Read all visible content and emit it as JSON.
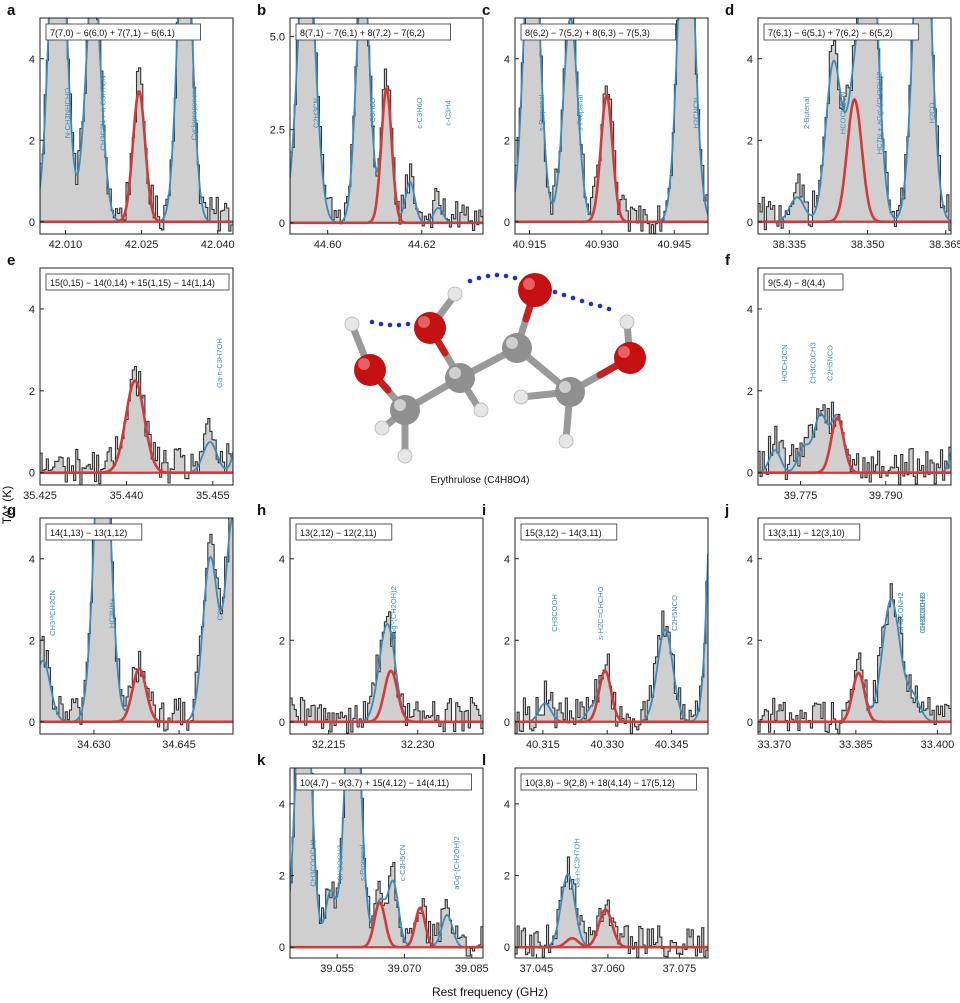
{
  "figure": {
    "y_axis_label": "TA* (K)",
    "x_axis_label": "Rest frequency (GHz)",
    "molecule_caption": "Erythrulose (C4H8O4)"
  },
  "chart_data": [
    {
      "panel": "a",
      "type": "line",
      "transition": "7(7,0) − 6(6,0) + 7(7,1) − 6(6,1)",
      "xlim": [
        42.005,
        42.043
      ],
      "ylim": [
        -0.3,
        5.0
      ],
      "xticks": [
        "42.010",
        "42.025",
        "42.040"
      ],
      "yticks": [
        "0",
        "2",
        "4"
      ],
      "target_lines": [
        {
          "x": 42.0245,
          "height": 3.2,
          "width": 0.0012
        }
      ],
      "other_lines": [
        {
          "x": 42.0085,
          "height": 9.0,
          "width": 0.0016
        },
        {
          "x": 42.0155,
          "height": 6.0,
          "width": 0.0015
        },
        {
          "x": 42.0335,
          "height": 8.0,
          "width": 0.0014
        }
      ],
      "species_labels": [
        "N-CH3NHCHO",
        "CH3C3N + n-C3H7CN",
        "Cyclopropenone"
      ]
    },
    {
      "panel": "b",
      "type": "line",
      "transition": "8(7,1) − 7(6,1) + 8(7,2) − 7(6,2)",
      "xlim": [
        44.592,
        44.633
      ],
      "ylim": [
        -0.3,
        5.5
      ],
      "xticks": [
        "44.60",
        "44.62"
      ],
      "yticks": [
        "0",
        "2.5",
        "5.0"
      ],
      "target_lines": [
        {
          "x": 44.6125,
          "height": 3.6,
          "width": 0.0011
        }
      ],
      "other_lines": [
        {
          "x": 44.5955,
          "height": 8.0,
          "width": 0.0018
        },
        {
          "x": 44.6075,
          "height": 7.0,
          "width": 0.0014
        },
        {
          "x": 44.6175,
          "height": 1.1,
          "width": 0.001
        },
        {
          "x": 44.6235,
          "height": 0.4,
          "width": 0.001
        }
      ],
      "species_labels": [
        "C2H3CN",
        "c-C3H6O",
        "c-C3H6O",
        "c-C3H4"
      ]
    },
    {
      "panel": "c",
      "type": "line",
      "transition": "8(6,2) − 7(5,2) + 8(6,3) − 7(5,3)",
      "xlim": [
        40.912,
        40.952
      ],
      "ylim": [
        -0.3,
        5.0
      ],
      "xticks": [
        "40.915",
        "40.930",
        "40.945"
      ],
      "yticks": [
        "0",
        "2",
        "4"
      ],
      "target_lines": [
        {
          "x": 40.931,
          "height": 3.1,
          "width": 0.0012
        }
      ],
      "other_lines": [
        {
          "x": 40.9155,
          "height": 8.0,
          "width": 0.0016
        },
        {
          "x": 40.9235,
          "height": 5.0,
          "width": 0.0015
        },
        {
          "x": 40.9475,
          "height": 9.0,
          "width": 0.0016
        }
      ],
      "species_labels": [
        "s-Propanal",
        "s-Propanal",
        "H2CNCN"
      ]
    },
    {
      "panel": "d",
      "type": "line",
      "transition": "7(6,1) − 6(5,1) + 7(6,2) − 6(5,2)",
      "xlim": [
        38.329,
        38.366
      ],
      "ylim": [
        -0.3,
        5.0
      ],
      "xticks": [
        "38.335",
        "38.350",
        "38.365"
      ],
      "yticks": [
        "0",
        "2",
        "4"
      ],
      "target_lines": [
        {
          "x": 38.3475,
          "height": 3.0,
          "width": 0.0014
        }
      ],
      "other_lines": [
        {
          "x": 38.3365,
          "height": 0.6,
          "width": 0.0014
        },
        {
          "x": 38.3435,
          "height": 3.9,
          "width": 0.0015
        },
        {
          "x": 38.3505,
          "height": 7.5,
          "width": 0.0015
        },
        {
          "x": 38.3605,
          "height": 9.0,
          "width": 0.0016
        }
      ],
      "species_labels": [
        "2-Butenal",
        "HCOCH2CN",
        "HC7N + aGg′-(CH2OH)2",
        "H2CO"
      ]
    },
    {
      "panel": "e",
      "type": "line",
      "transition": "15(0,15) − 14(0,14) + 15(1,15) − 14(1,14)",
      "xlim": [
        35.425,
        35.4585
      ],
      "ylim": [
        -0.3,
        5.0
      ],
      "xticks": [
        "35.425",
        "35.440",
        "35.455"
      ],
      "yticks": [
        "0",
        "2",
        "4"
      ],
      "target_lines": [
        {
          "x": 35.4415,
          "height": 2.25,
          "width": 0.0016
        }
      ],
      "other_lines": [
        {
          "x": 35.4545,
          "height": 0.75,
          "width": 0.0012
        },
        {
          "x": 35.4615,
          "height": 5.0,
          "width": 0.0014
        }
      ],
      "species_labels": [
        "Ga-n-C3H7OH"
      ]
    },
    {
      "panel": "f",
      "type": "line",
      "transition": "9(5,4) − 8(4,4)",
      "xlim": [
        39.7675,
        39.8015
      ],
      "ylim": [
        -0.3,
        5.0
      ],
      "xticks": [
        "39.775",
        "39.790"
      ],
      "yticks": [
        "0",
        "2",
        "4"
      ],
      "target_lines": [
        {
          "x": 39.7815,
          "height": 1.35,
          "width": 0.0011
        }
      ],
      "other_lines": [
        {
          "x": 39.7705,
          "height": 0.55,
          "width": 0.001
        },
        {
          "x": 39.7755,
          "height": 0.6,
          "width": 0.001
        },
        {
          "x": 39.7785,
          "height": 1.4,
          "width": 0.0012
        },
        {
          "x": 39.8045,
          "height": 5.0,
          "width": 0.0014
        }
      ],
      "species_labels": [
        "HOCH2CN",
        "CH3COCH3",
        "C2H5NCO"
      ]
    },
    {
      "panel": "g",
      "type": "line",
      "transition": "14(1,13) − 13(1,12)",
      "xlim": [
        34.6205,
        34.6545
      ],
      "ylim": [
        -0.3,
        5.0
      ],
      "xticks": [
        "34.630",
        "34.645"
      ],
      "yticks": [
        "0",
        "2",
        "4"
      ],
      "target_lines": [
        {
          "x": 34.638,
          "height": 1.3,
          "width": 0.0012
        }
      ],
      "other_lines": [
        {
          "x": 34.621,
          "height": 1.5,
          "width": 0.0013
        },
        {
          "x": 34.6315,
          "height": 8.0,
          "width": 0.0014
        },
        {
          "x": 34.6505,
          "height": 4.0,
          "width": 0.0013
        },
        {
          "x": 34.6545,
          "height": 5.0,
          "width": 0.0013
        }
      ],
      "species_labels": [
        "CH3¹³CH2CN",
        "HC3NH+",
        "C8H"
      ]
    },
    {
      "panel": "h",
      "type": "line",
      "transition": "13(2,12) − 12(2,11)",
      "xlim": [
        32.2085,
        32.241
      ],
      "ylim": [
        -0.3,
        5.0
      ],
      "xticks": [
        "32.215",
        "32.230"
      ],
      "yticks": [
        "0",
        "2",
        "4"
      ],
      "target_lines": [
        {
          "x": 32.2255,
          "height": 1.25,
          "width": 0.0011
        }
      ],
      "other_lines": [
        {
          "x": 32.2243,
          "height": 1.5,
          "width": 0.0012
        }
      ],
      "species_labels": [
        "aGg′-(CH2OH)2"
      ]
    },
    {
      "panel": "i",
      "type": "line",
      "transition": "15(3,12) − 14(3,11)",
      "xlim": [
        40.3085,
        40.3535
      ],
      "ylim": [
        -0.3,
        5.0
      ],
      "xticks": [
        "40.315",
        "40.330",
        "40.345"
      ],
      "yticks": [
        "0",
        "2",
        "4"
      ],
      "target_lines": [
        {
          "x": 40.3295,
          "height": 1.25,
          "width": 0.0014
        }
      ],
      "other_lines": [
        {
          "x": 40.3155,
          "height": 0.45,
          "width": 0.0014
        },
        {
          "x": 40.3262,
          "height": 0.3,
          "width": 0.0012
        },
        {
          "x": 40.3435,
          "height": 2.25,
          "width": 0.0018
        },
        {
          "x": 40.3555,
          "height": 9.0,
          "width": 0.0016
        }
      ],
      "species_labels": [
        "CH3COOH",
        "s-H2C=CHCHO",
        "C2H5NCO"
      ]
    },
    {
      "panel": "j",
      "type": "line",
      "transition": "13(3,11) − 12(3,10)",
      "xlim": [
        33.367,
        33.4025
      ],
      "ylim": [
        -0.3,
        5.0
      ],
      "xticks": [
        "33.370",
        "33.385",
        "33.400"
      ],
      "yticks": [
        "0",
        "2",
        "4"
      ],
      "target_lines": [
        {
          "x": 33.3855,
          "height": 1.2,
          "width": 0.0011
        }
      ],
      "other_lines": [
        {
          "x": 33.3915,
          "height": 3.0,
          "width": 0.0016
        },
        {
          "x": 33.3955,
          "height": 0.6,
          "width": 0.0013
        }
      ],
      "species_labels": [
        "CH3CONH2",
        "CH3OCH3",
        "CH3COCH3"
      ]
    },
    {
      "panel": "k",
      "type": "line",
      "transition": "10(4,7) − 9(3,7) + 15(4,12) − 14(4,11)",
      "xlim": [
        39.0445,
        39.0875
      ],
      "ylim": [
        -0.3,
        5.0
      ],
      "xticks": [
        "39.055",
        "39.070",
        "39.085"
      ],
      "yticks": [
        "0",
        "2",
        "4"
      ],
      "target_lines": [
        {
          "x": 39.0645,
          "height": 1.25,
          "width": 0.0012
        },
        {
          "x": 39.0735,
          "height": 1.1,
          "width": 0.0011
        }
      ],
      "other_lines": [
        {
          "x": 39.0475,
          "height": 9.0,
          "width": 0.0016
        },
        {
          "x": 39.0535,
          "height": 1.5,
          "width": 0.0011
        },
        {
          "x": 39.0585,
          "height": 9.0,
          "width": 0.0016
        },
        {
          "x": 39.0675,
          "height": 1.8,
          "width": 0.0012
        },
        {
          "x": 39.0795,
          "height": 0.9,
          "width": 0.0012
        }
      ],
      "species_labels": [
        "CH3COOCH3",
        "CH3OCH3",
        "s-Propanal",
        "c-C3H5CN",
        "aGg′-(CH2OH)2"
      ]
    },
    {
      "panel": "l",
      "type": "line",
      "transition": "10(3,8) − 9(2,8) + 18(4,14) − 17(5,12)",
      "xlim": [
        37.0405,
        37.081
      ],
      "ylim": [
        -0.3,
        5.0
      ],
      "xticks": [
        "37.045",
        "37.060",
        "37.075"
      ],
      "yticks": [
        "0",
        "2",
        "4"
      ],
      "target_lines": [
        {
          "x": 37.0525,
          "height": 0.25,
          "width": 0.0013
        },
        {
          "x": 37.0595,
          "height": 1.05,
          "width": 0.0014
        }
      ],
      "other_lines": [
        {
          "x": 37.0515,
          "height": 1.85,
          "width": 0.0014
        }
      ],
      "species_labels": [
        "Ga-n-C3H7OH"
      ]
    }
  ]
}
